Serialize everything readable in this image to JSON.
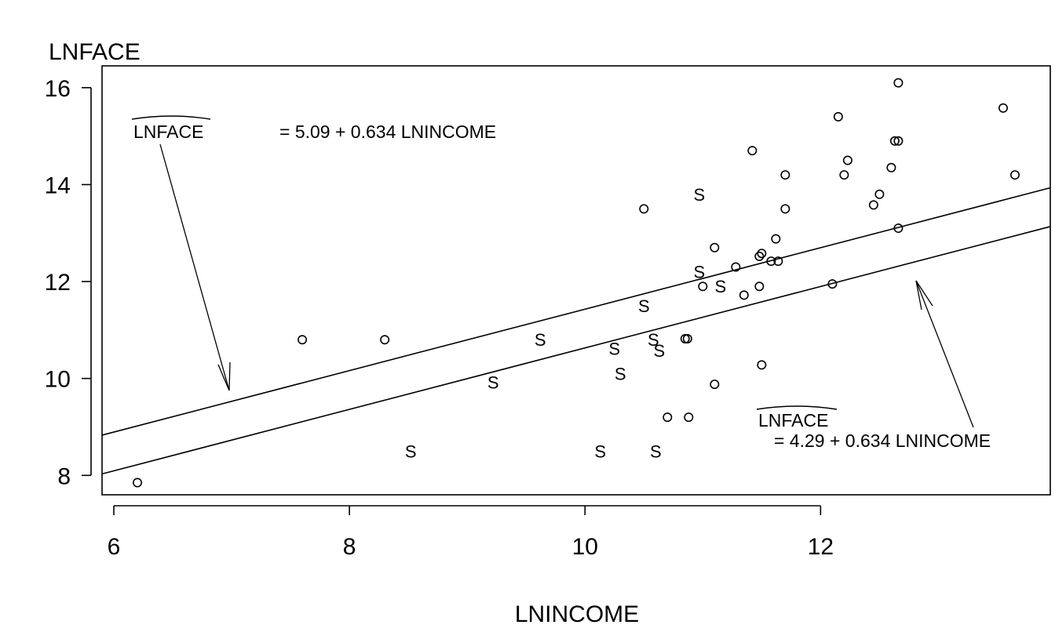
{
  "chart_data": {
    "type": "scatter",
    "xlabel": "LNINCOME",
    "ylabel": "LNFACE",
    "xlim": [
      5.9,
      13.95
    ],
    "ylim": [
      7.6,
      16.45
    ],
    "x_ticks": [
      6,
      8,
      10,
      12
    ],
    "x_tick_labels": [
      "6",
      "8",
      "10",
      "12"
    ],
    "y_ticks": [
      8,
      10,
      12,
      14,
      16
    ],
    "y_tick_labels": [
      "8",
      "10",
      "12",
      "14",
      "16"
    ],
    "grid": false,
    "legend": "none",
    "series": [
      {
        "marker": "o",
        "points": [
          [
            6.2,
            7.85
          ],
          [
            7.6,
            10.8
          ],
          [
            8.3,
            10.8
          ],
          [
            10.5,
            13.5
          ],
          [
            10.85,
            10.82
          ],
          [
            10.87,
            10.82
          ],
          [
            10.7,
            9.2
          ],
          [
            10.88,
            9.2
          ],
          [
            11.0,
            11.9
          ],
          [
            11.1,
            12.7
          ],
          [
            11.1,
            9.88
          ],
          [
            11.28,
            12.3
          ],
          [
            11.35,
            11.72
          ],
          [
            11.42,
            14.7
          ],
          [
            11.48,
            11.9
          ],
          [
            11.48,
            12.52
          ],
          [
            11.5,
            12.58
          ],
          [
            11.5,
            10.28
          ],
          [
            11.58,
            12.42
          ],
          [
            11.62,
            12.88
          ],
          [
            11.64,
            12.42
          ],
          [
            11.7,
            13.5
          ],
          [
            11.7,
            14.2
          ],
          [
            12.1,
            11.95
          ],
          [
            12.15,
            15.4
          ],
          [
            12.2,
            14.2
          ],
          [
            12.23,
            14.5
          ],
          [
            12.45,
            13.58
          ],
          [
            12.5,
            13.8
          ],
          [
            12.6,
            14.35
          ],
          [
            12.63,
            14.9
          ],
          [
            12.66,
            14.9
          ],
          [
            12.66,
            16.1
          ],
          [
            12.66,
            13.1
          ],
          [
            13.55,
            15.58
          ],
          [
            13.65,
            14.2
          ]
        ]
      },
      {
        "marker": "S",
        "points": [
          [
            8.52,
            8.5
          ],
          [
            9.22,
            9.92
          ],
          [
            9.62,
            10.8
          ],
          [
            10.13,
            8.5
          ],
          [
            10.25,
            10.62
          ],
          [
            10.3,
            10.1
          ],
          [
            10.5,
            11.5
          ],
          [
            10.58,
            10.8
          ],
          [
            10.63,
            10.58
          ],
          [
            10.6,
            8.5
          ],
          [
            10.97,
            13.8
          ],
          [
            10.97,
            12.2
          ],
          [
            11.15,
            11.9
          ]
        ]
      }
    ],
    "lines": [
      {
        "intercept": 5.09,
        "slope": 0.634
      },
      {
        "intercept": 4.29,
        "slope": 0.634
      }
    ],
    "annotations": [
      {
        "hat_text": "LNFACE",
        "text": "= 5.09 + 0.634 LNINCOME"
      },
      {
        "hat_text": "LNFACE",
        "text": "= 4.29 + 0.634 LNINCOME"
      }
    ]
  }
}
